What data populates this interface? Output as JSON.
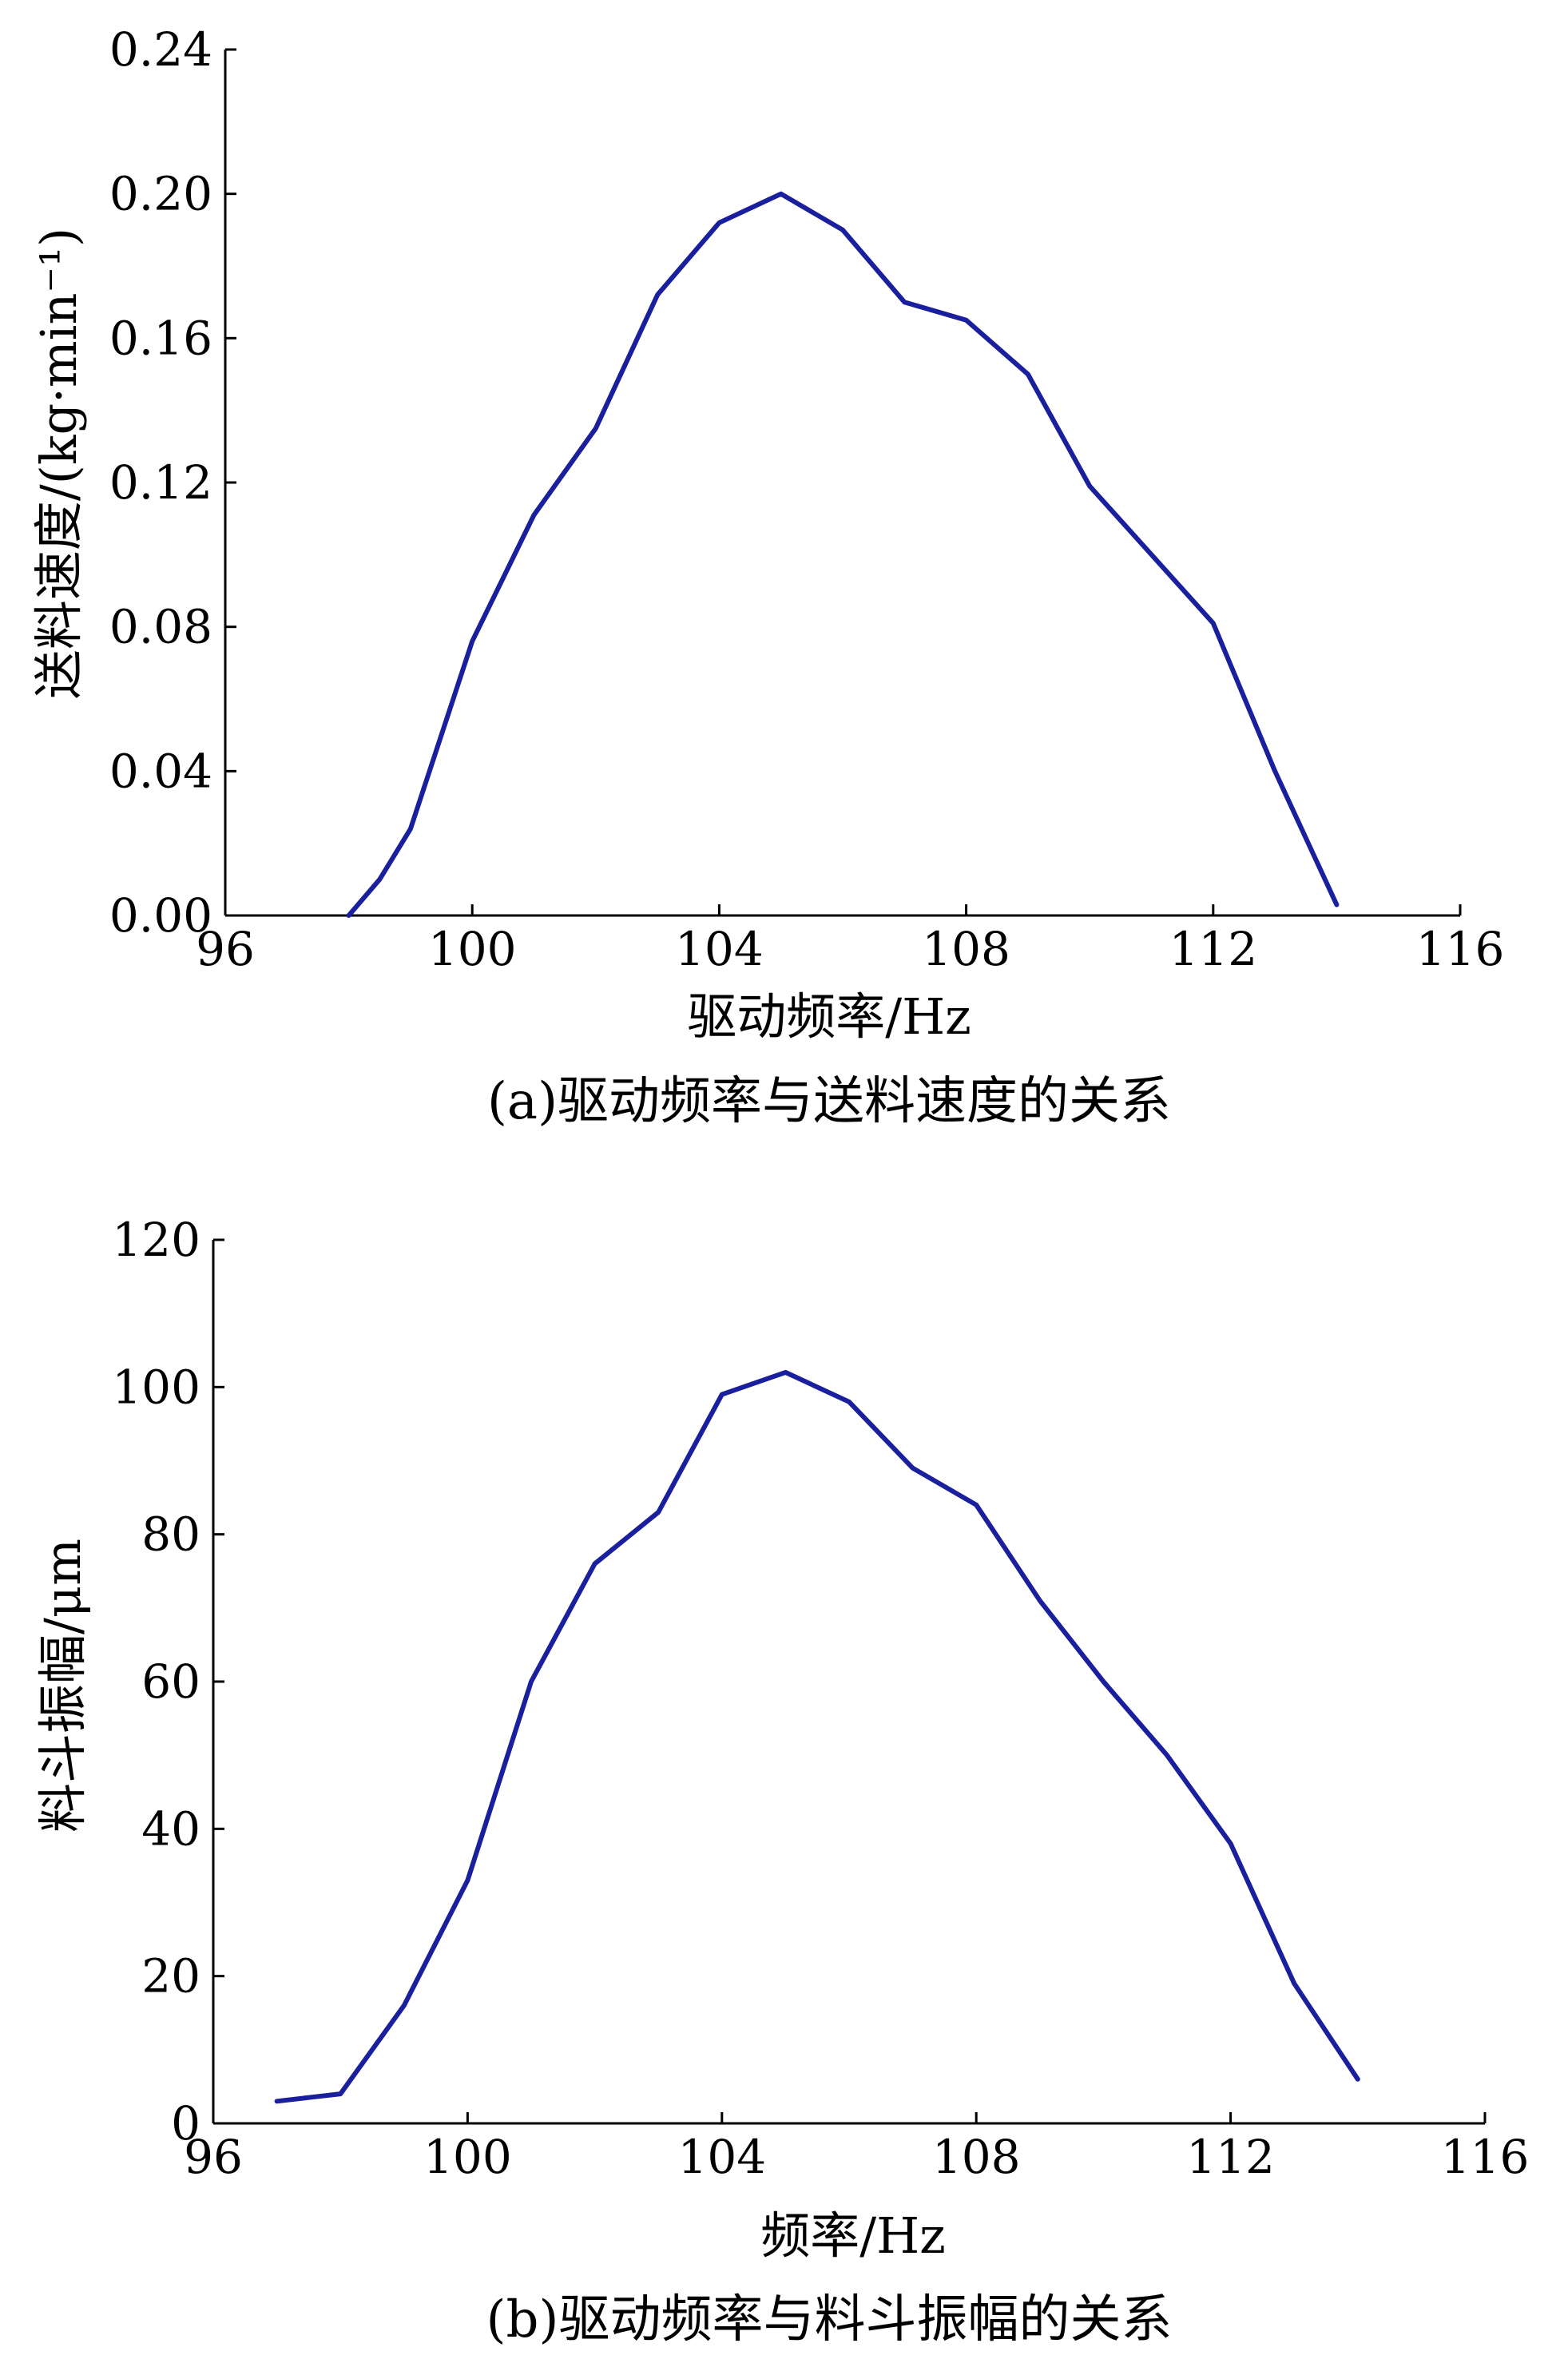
{
  "colors": {
    "line": "#1a1f9e",
    "axis": "#000000",
    "background": "#ffffff"
  },
  "chart_data": [
    {
      "type": "line",
      "caption": "(a)驱动频率与送料速度的关系",
      "xlabel": "驱动频率/Hz",
      "ylabel": "送料速度/(kg·min⁻¹)",
      "xlim": [
        96,
        116
      ],
      "ylim": [
        0,
        0.24
      ],
      "xticks": [
        "96",
        "100",
        "104",
        "108",
        "112",
        "116"
      ],
      "yticks": [
        "0.00",
        "0.04",
        "0.08",
        "0.12",
        "0.16",
        "0.20",
        "0.24"
      ],
      "grid": false,
      "series": [
        {
          "x": [
            98,
            98.5,
            99,
            100,
            101,
            102,
            103,
            104,
            105,
            106,
            107,
            108,
            109,
            110,
            111,
            112,
            113,
            114
          ],
          "values": [
            0.0,
            0.01,
            0.024,
            0.076,
            0.111,
            0.135,
            0.172,
            0.192,
            0.2,
            0.19,
            0.17,
            0.165,
            0.15,
            0.119,
            0.1,
            0.081,
            0.04,
            0.003
          ]
        }
      ]
    },
    {
      "type": "line",
      "caption": "(b)驱动频率与料斗振幅的关系",
      "xlabel": "频率/Hz",
      "ylabel": "料斗振幅/μm",
      "xlim": [
        96,
        116
      ],
      "ylim": [
        0,
        120
      ],
      "xticks": [
        "96",
        "100",
        "104",
        "108",
        "112",
        "116"
      ],
      "yticks": [
        "0",
        "20",
        "40",
        "60",
        "80",
        "100",
        "120"
      ],
      "grid": false,
      "series": [
        {
          "x": [
            97,
            97.5,
            98,
            99,
            100,
            101,
            102,
            103,
            104,
            105,
            106,
            107,
            108,
            109,
            110,
            111,
            112,
            113,
            114
          ],
          "values": [
            3,
            3.5,
            4,
            16,
            33,
            60,
            76,
            83,
            99,
            102,
            98,
            89,
            84,
            71,
            60,
            50,
            38,
            19,
            6
          ]
        }
      ]
    }
  ]
}
